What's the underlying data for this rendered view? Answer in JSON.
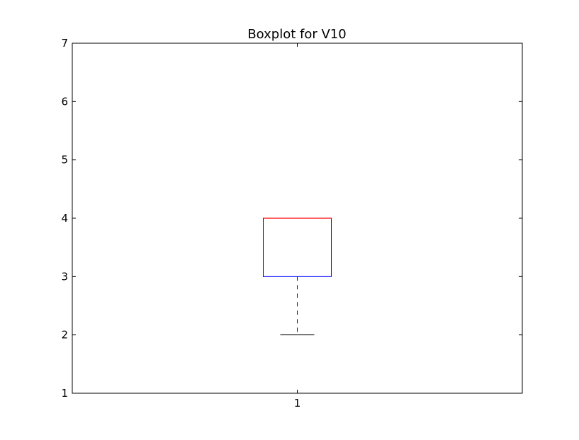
{
  "chart_data": {
    "type": "boxplot",
    "title": "Boxplot for V10",
    "xlabel": "",
    "ylabel": "",
    "categories": [
      "1"
    ],
    "ylim": [
      1,
      7
    ],
    "yticks": [
      "1",
      "2",
      "3",
      "4",
      "5",
      "6",
      "7"
    ],
    "boxes": [
      {
        "category": "1",
        "whisker_low": 2,
        "q1": 3,
        "median": 4,
        "q3": 4,
        "whisker_high": 4
      }
    ],
    "grid": false,
    "colors": {
      "box": "#0000ff",
      "median": "#ff0000",
      "whisker": "#0000ff",
      "cap": "#000000",
      "axes": "#000000"
    }
  }
}
